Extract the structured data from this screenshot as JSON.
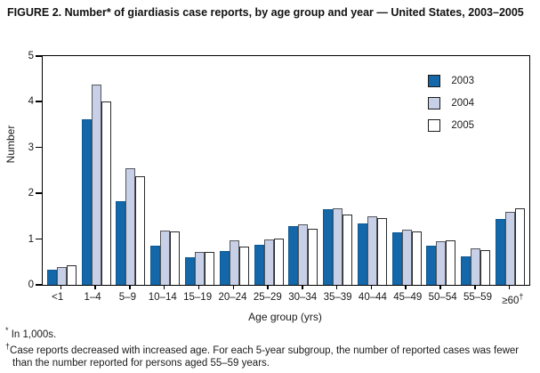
{
  "title": "FIGURE 2. Number* of giardiasis case reports, by age group and year — United States, 2003–2005",
  "chart_data": {
    "type": "bar",
    "title": "FIGURE 2. Number* of giardiasis case reports, by age group and year — United States, 2003–2005",
    "xlabel": "Age group (yrs)",
    "ylabel": "Number",
    "ylim": [
      0,
      5
    ],
    "yticks": [
      0,
      1,
      2,
      3,
      4,
      5
    ],
    "grid": false,
    "legend_position": "top-right-inside",
    "units_note": "In 1,000s",
    "categories": [
      {
        "label": "<1"
      },
      {
        "label": "1–4"
      },
      {
        "label": "5–9"
      },
      {
        "label": "10–14"
      },
      {
        "label": "15–19"
      },
      {
        "label": "20–24"
      },
      {
        "label": "25–29"
      },
      {
        "label": "30–34"
      },
      {
        "label": "35–39"
      },
      {
        "label": "40–44"
      },
      {
        "label": "45–49"
      },
      {
        "label": "50–54"
      },
      {
        "label": "55–59"
      },
      {
        "label": "≥60",
        "sup": "†"
      }
    ],
    "series": [
      {
        "name": "2003",
        "color": "#1467a9",
        "border": "#0d5a94",
        "values": [
          0.33,
          3.62,
          1.82,
          0.85,
          0.6,
          0.74,
          0.87,
          1.28,
          1.65,
          1.35,
          1.14,
          0.86,
          0.62,
          1.44
        ]
      },
      {
        "name": "2004",
        "color": "#c8d0e8",
        "border": "#55565a",
        "values": [
          0.38,
          4.37,
          2.55,
          1.18,
          0.72,
          0.97,
          1.0,
          1.32,
          1.67,
          1.49,
          1.2,
          0.96,
          0.79,
          1.6
        ]
      },
      {
        "name": "2005",
        "color": "#ffffff",
        "border": "#2b2b2b",
        "values": [
          0.42,
          4.0,
          2.37,
          1.17,
          0.72,
          0.84,
          1.02,
          1.22,
          1.54,
          1.45,
          1.16,
          0.98,
          0.75,
          1.68
        ]
      }
    ]
  },
  "footnotes": [
    {
      "marker": "*",
      "text": " In 1,000s."
    },
    {
      "marker": "†",
      "text": "Case reports decreased with increased age. For each 5-year subgroup, the number of reported cases was fewer than the number reported for persons aged 55–59 years."
    }
  ]
}
